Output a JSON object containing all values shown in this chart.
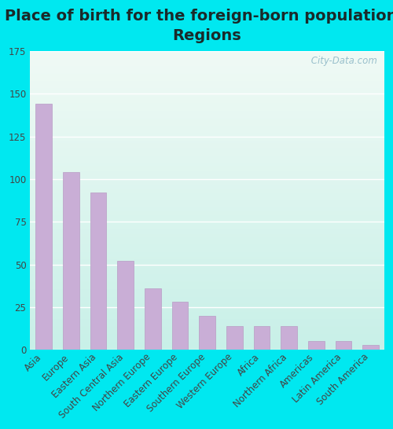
{
  "title": "Place of birth for the foreign-born population -\nRegions",
  "categories": [
    "Asia",
    "Europe",
    "Eastern Asia",
    "South Central Asia",
    "Northern Europe",
    "Eastern Europe",
    "Southern Europe",
    "Western Europe",
    "Africa",
    "Northern Africa",
    "Americas",
    "Latin America",
    "South America"
  ],
  "values": [
    144,
    104,
    92,
    52,
    36,
    28,
    20,
    14,
    14,
    14,
    5,
    5,
    3
  ],
  "bar_color": "#c9aed6",
  "bar_edge_color": "#b89cc4",
  "ylim": [
    0,
    175
  ],
  "yticks": [
    0,
    25,
    50,
    75,
    100,
    125,
    150,
    175
  ],
  "background_color_outer": "#00e8f0",
  "bg_top": "#f0faf5",
  "bg_bottom": "#c8f0e8",
  "grid_color": "#ffffff",
  "title_fontsize": 14,
  "tick_fontsize": 8.5,
  "watermark": " City-Data.com",
  "watermark_color": "#99c0cc",
  "title_color": "#1a2a2a"
}
